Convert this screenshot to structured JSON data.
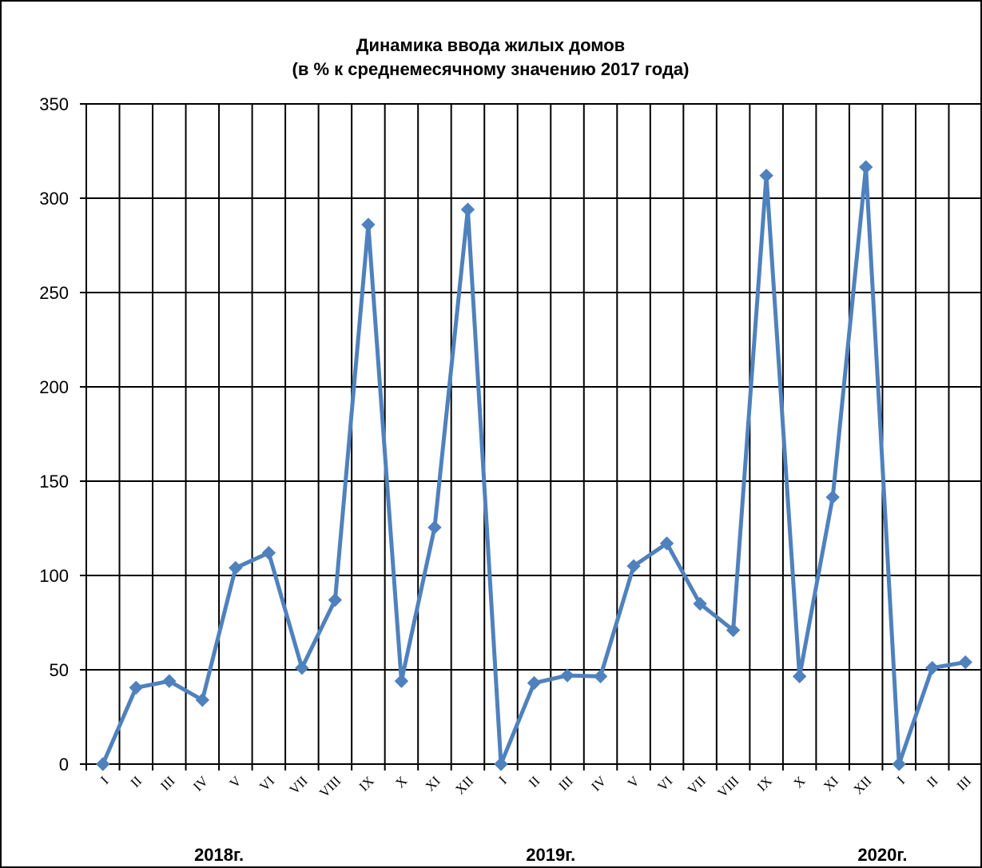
{
  "chart_data": {
    "type": "line",
    "title": [
      "Динамика ввода жилых домов",
      "(в % к среднемесячному значению 2017 года)"
    ],
    "xlabel": "",
    "ylabel": "",
    "ylim": [
      0,
      350
    ],
    "yticks": [
      "0",
      "50",
      "100",
      "150",
      "200",
      "250",
      "300",
      "350"
    ],
    "categories": [
      "I",
      "II",
      "III",
      "IV",
      "V",
      "VI",
      "VII",
      "VIII",
      "IX",
      "X",
      "XI",
      "XII",
      "I",
      "II",
      "III",
      "IV",
      "V",
      "VI",
      "VII",
      "VIII",
      "IX",
      "X",
      "XI",
      "XII",
      "I",
      "II",
      "III"
    ],
    "year_labels": [
      {
        "label": "2018г.",
        "category_index": 3.5
      },
      {
        "label": "2019г.",
        "category_index": 13.5
      },
      {
        "label": "2020г.",
        "category_index": 23.5
      }
    ],
    "grid": true,
    "legend": "none",
    "series": [
      {
        "color": "#4f81bd",
        "marker": "diamond",
        "values": [
          0,
          40.5,
          44,
          34,
          104,
          112,
          51,
          87,
          286,
          44,
          125.5,
          294,
          0,
          43,
          47,
          46.5,
          105,
          117,
          85,
          71,
          312,
          46.5,
          141.5,
          316.5,
          0,
          51,
          54
        ]
      }
    ]
  }
}
